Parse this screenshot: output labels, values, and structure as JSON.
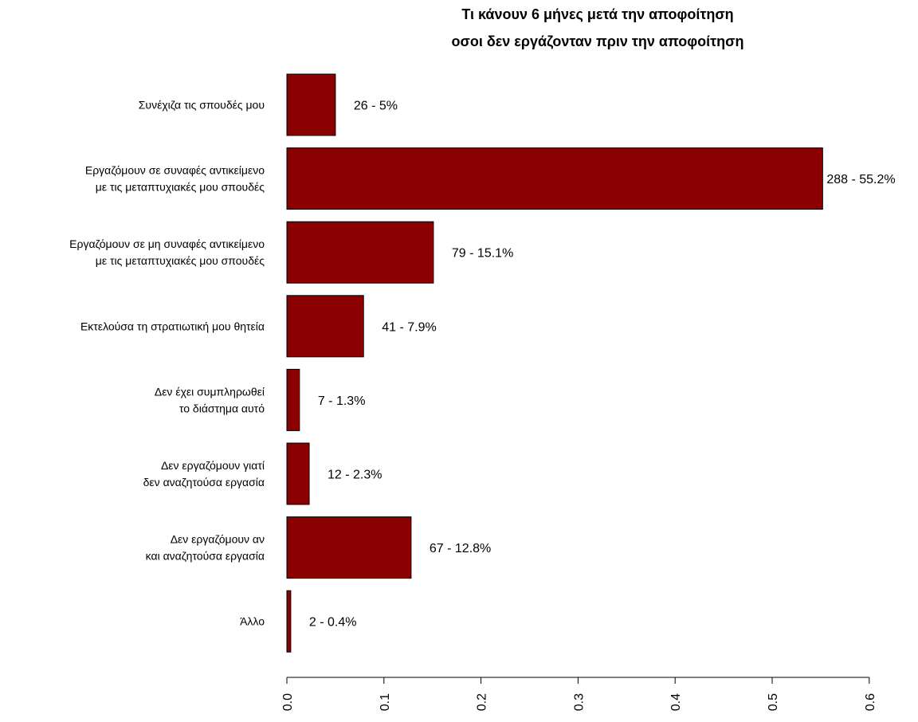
{
  "chart_data": {
    "type": "bar",
    "orientation": "horizontal",
    "title": [
      "Τι κάνουν 6 μήνες μετά την αποφοίτηση",
      "οσοι δεν εργάζονταν πριν την αποφοίτηση"
    ],
    "xlabel": "",
    "ylabel": "",
    "xlim": [
      0,
      0.6
    ],
    "xticks": [
      0.0,
      0.1,
      0.2,
      0.3,
      0.4,
      0.5,
      0.6
    ],
    "xtick_labels": [
      "0.0",
      "0.1",
      "0.2",
      "0.3",
      "0.4",
      "0.5",
      "0.6"
    ],
    "categories": [
      [
        "Συνέχιζα τις σπουδές μου"
      ],
      [
        "Εργαζόμουν σε συναφές αντικείμενο",
        "με τις μεταπτυχιακές μου σπουδές"
      ],
      [
        "Εργαζόμουν σε μη συναφές αντικείμενο",
        "με τις μεταπτυχιακές μου σπουδές"
      ],
      [
        "Εκτελούσα τη στρατιωτική μου θητεία"
      ],
      [
        "Δεν έχει συμπληρωθεί",
        "το διάστημα αυτό"
      ],
      [
        "Δεν εργαζόμουν γιατί",
        "δεν αναζητούσα εργασία"
      ],
      [
        "Δεν εργαζόμουν αν",
        "και αναζητούσα εργασία"
      ],
      [
        "Άλλο"
      ]
    ],
    "values": [
      0.05,
      0.552,
      0.151,
      0.079,
      0.013,
      0.023,
      0.128,
      0.004
    ],
    "counts": [
      26,
      288,
      79,
      41,
      7,
      12,
      67,
      2
    ],
    "data_labels": [
      "26 - 5%",
      "288 - 55.2%",
      "79 - 15.1%",
      "41 - 7.9%",
      "7 - 1.3%",
      "12 - 2.3%",
      "67 - 12.8%",
      "2 - 0.4%"
    ],
    "bar_color": "#8B0000",
    "bar_border": "#000000",
    "grid": false,
    "legend": "none"
  }
}
